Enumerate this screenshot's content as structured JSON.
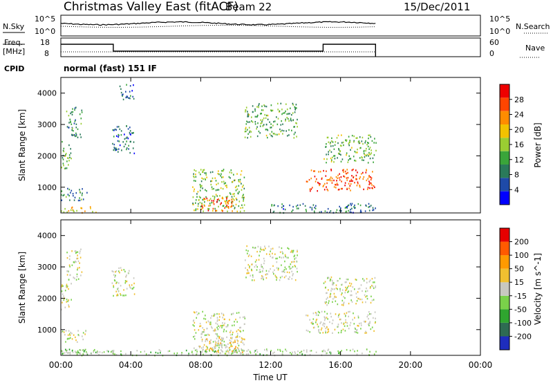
{
  "header": {
    "station": "Christmas Valley East (fitACF)",
    "beam": "Beam 22",
    "date": "15/Dec/2011"
  },
  "noise_panel": {
    "left_label": "N.Sky",
    "left_ticks": [
      "10^5",
      "10^0"
    ],
    "right_label": "N.Search",
    "right_ticks": [
      "10^5",
      "10^0"
    ]
  },
  "freq_panel": {
    "left_label_line1": "Freq.",
    "left_label_line2": "[MHz]",
    "left_ticks": [
      "18",
      "8"
    ],
    "right_label": "Nave",
    "right_ticks": [
      "60",
      "0"
    ]
  },
  "cpid": {
    "label": "CPID",
    "value": "normal (fast) 151 IF"
  },
  "colors": {
    "power": [
      "#0000ff",
      "#1e4aa8",
      "#2a7a5a",
      "#3aa53a",
      "#9acd32",
      "#f2c200",
      "#ff8c00",
      "#ff4500",
      "#ee0000"
    ],
    "velocity": [
      "#1e2dbd",
      "#2e6b52",
      "#2fa52f",
      "#7ad14a",
      "#c8c8c0",
      "#f0c030",
      "#ff9a00",
      "#ff5a00",
      "#e60000"
    ]
  },
  "chart_data": [
    {
      "type": "heatmap",
      "panel": "power",
      "ylabel": "Slant Range [km]",
      "xlim_hours": [
        0,
        24
      ],
      "ylim_km": [
        180,
        4500
      ],
      "y_ticks": [
        "1000",
        "2000",
        "3000",
        "4000"
      ],
      "colorbar_label": "Power [dB]",
      "colorbar_ticks": [
        "28",
        "24",
        "20",
        "16",
        "12",
        "8",
        "4"
      ],
      "colorbar_range": [
        0,
        30
      ],
      "scatter_regions": [
        {
          "t": [
            0.0,
            0.6
          ],
          "r": [
            1600,
            2500
          ],
          "value": 12
        },
        {
          "t": [
            0.3,
            1.2
          ],
          "r": [
            2600,
            3600
          ],
          "value": 10
        },
        {
          "t": [
            0.0,
            1.5
          ],
          "r": [
            600,
            1000
          ],
          "value": 9
        },
        {
          "t": [
            0.0,
            2.0
          ],
          "r": [
            200,
            400
          ],
          "value": 18
        },
        {
          "t": [
            2.9,
            4.2
          ],
          "r": [
            2100,
            3000
          ],
          "value": 7
        },
        {
          "t": [
            3.3,
            4.2
          ],
          "r": [
            3800,
            4300
          ],
          "value": 6
        },
        {
          "t": [
            7.5,
            10.5
          ],
          "r": [
            250,
            1600
          ],
          "value": 14
        },
        {
          "t": [
            8.0,
            10.0
          ],
          "r": [
            250,
            700
          ],
          "value": 24
        },
        {
          "t": [
            10.5,
            13.5
          ],
          "r": [
            2600,
            3700
          ],
          "value": 12
        },
        {
          "t": [
            14.0,
            18.0
          ],
          "r": [
            900,
            1600
          ],
          "value": 25
        },
        {
          "t": [
            15.0,
            18.0
          ],
          "r": [
            1800,
            2700
          ],
          "value": 13
        },
        {
          "t": [
            12.0,
            18.0
          ],
          "r": [
            200,
            500
          ],
          "value": 8
        }
      ]
    },
    {
      "type": "heatmap",
      "panel": "velocity",
      "ylabel": "Slant Range [km]",
      "xlabel": "Time UT",
      "xlim_hours": [
        0,
        24
      ],
      "x_ticks": [
        "00:00",
        "04:00",
        "08:00",
        "12:00",
        "16:00",
        "20:00",
        "00:00"
      ],
      "ylim_km": [
        180,
        4500
      ],
      "y_ticks": [
        "1000",
        "2000",
        "3000",
        "4000"
      ],
      "colorbar_label": "Velocity [m s^-1]",
      "colorbar_ticks": [
        "200",
        "100",
        "50",
        "15",
        "-15",
        "-50",
        "-100",
        "-200"
      ],
      "colorbar_range": [
        -250,
        250
      ],
      "scatter_regions": [
        {
          "t": [
            0.0,
            0.6
          ],
          "r": [
            1600,
            2500
          ],
          "value": 0
        },
        {
          "t": [
            0.3,
            1.2
          ],
          "r": [
            2600,
            3600
          ],
          "value": 0
        },
        {
          "t": [
            0.0,
            1.5
          ],
          "r": [
            600,
            1000
          ],
          "value": 0
        },
        {
          "t": [
            0.0,
            3.0
          ],
          "r": [
            200,
            400
          ],
          "value": -60
        },
        {
          "t": [
            2.9,
            4.2
          ],
          "r": [
            2100,
            3000
          ],
          "value": 0
        },
        {
          "t": [
            7.5,
            10.5
          ],
          "r": [
            250,
            1600
          ],
          "value": 0
        },
        {
          "t": [
            8.0,
            10.5
          ],
          "r": [
            250,
            800
          ],
          "value": 40
        },
        {
          "t": [
            10.5,
            13.5
          ],
          "r": [
            2600,
            3700
          ],
          "value": 0
        },
        {
          "t": [
            14.0,
            18.0
          ],
          "r": [
            900,
            1600
          ],
          "value": 0
        },
        {
          "t": [
            15.0,
            18.0
          ],
          "r": [
            1800,
            2700
          ],
          "value": 0
        },
        {
          "t": [
            0.0,
            18.0
          ],
          "r": [
            200,
            400
          ],
          "value": -40
        }
      ]
    }
  ]
}
